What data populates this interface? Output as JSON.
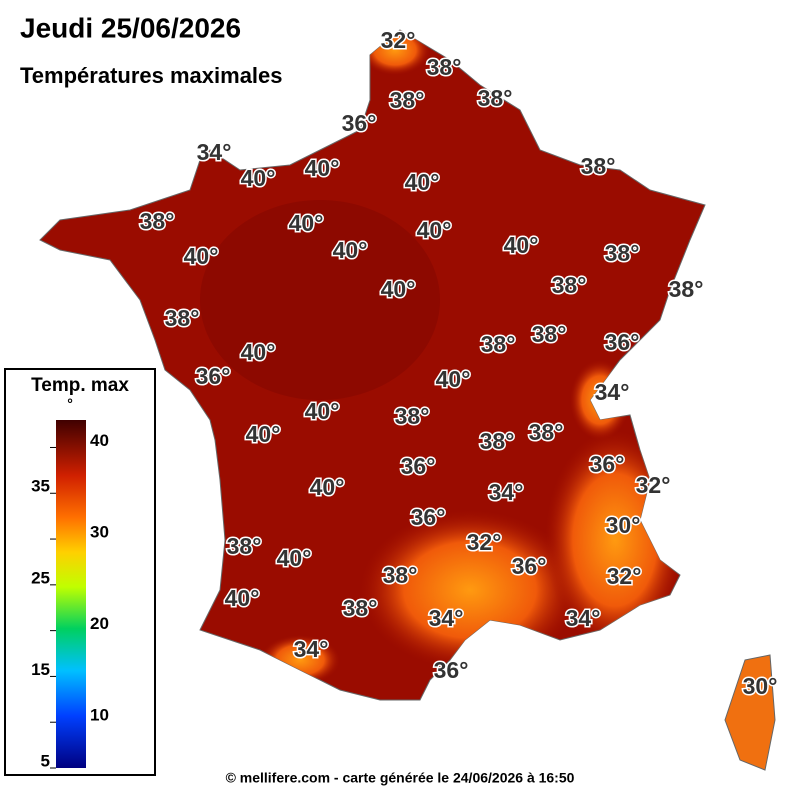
{
  "header": {
    "title": "Jeudi 25/06/2026",
    "subtitle": "Températures maximales"
  },
  "map": {
    "labels": [
      "32°",
      "38°",
      "38°",
      "38°",
      "36°",
      "34°",
      "40°",
      "40°",
      "40°",
      "38°",
      "38°",
      "40°",
      "40°",
      "40°",
      "40°",
      "40°",
      "38°",
      "40°",
      "38°",
      "38°",
      "38°",
      "38°",
      "38°",
      "36°",
      "40°",
      "40°",
      "36°",
      "34°",
      "40°",
      "38°",
      "40°",
      "38°",
      "38°",
      "36°",
      "36°",
      "32°",
      "34°",
      "40°",
      "36°",
      "30°",
      "32°",
      "38°",
      "40°",
      "36°",
      "38°",
      "32°",
      "40°",
      "38°",
      "34°",
      "34°",
      "34°",
      "36°",
      "30°"
    ]
  },
  "legend": {
    "title": "Temp. max",
    "unit": "°",
    "range": [
      5,
      43
    ],
    "ticks": [
      40,
      35,
      30,
      25,
      20,
      15,
      10,
      5
    ]
  },
  "footer": "© mellifere.com - carte générée le 24/06/2026 à 16:50"
}
